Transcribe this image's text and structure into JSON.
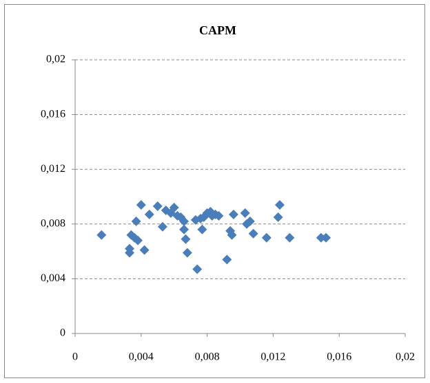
{
  "chart_data": {
    "type": "scatter",
    "title": "CAPM",
    "x": [
      0.0016,
      0.0033,
      0.0033,
      0.0034,
      0.0036,
      0.0038,
      0.0037,
      0.004,
      0.0042,
      0.0045,
      0.005,
      0.0053,
      0.0055,
      0.0058,
      0.006,
      0.0062,
      0.0064,
      0.0066,
      0.0066,
      0.0067,
      0.0068,
      0.0073,
      0.0074,
      0.0076,
      0.0077,
      0.0078,
      0.008,
      0.0082,
      0.0083,
      0.0085,
      0.0087,
      0.0092,
      0.0094,
      0.0095,
      0.0096,
      0.0103,
      0.0104,
      0.0106,
      0.0108,
      0.0116,
      0.0123,
      0.0124,
      0.013,
      0.0149,
      0.0152
    ],
    "values": [
      0.0072,
      0.0059,
      0.0062,
      0.0072,
      0.007,
      0.0068,
      0.0082,
      0.0094,
      0.0061,
      0.0087,
      0.0093,
      0.0078,
      0.009,
      0.0088,
      0.0092,
      0.0086,
      0.0085,
      0.0082,
      0.0076,
      0.0069,
      0.0059,
      0.0083,
      0.0047,
      0.0084,
      0.0076,
      0.0085,
      0.0088,
      0.0089,
      0.0086,
      0.0087,
      0.0086,
      0.0054,
      0.0075,
      0.0072,
      0.0087,
      0.0088,
      0.008,
      0.0082,
      0.0073,
      0.007,
      0.0085,
      0.0094,
      0.007,
      0.007,
      0.007
    ],
    "color": "#4a7ebb",
    "xlim": [
      0,
      0.02
    ],
    "xticks": [
      0,
      {
        "value": 0.004,
        "label": "0,004"
      },
      {
        "value": 0.008,
        "label": "0,008"
      },
      {
        "value": 0.012,
        "label": "0,012"
      },
      {
        "value": 0.016,
        "label": "0,016"
      },
      {
        "value": 0.02,
        "label": "0,02"
      }
    ],
    "ylim": [
      0,
      0.02
    ],
    "yticks": [
      0,
      {
        "value": 0.004,
        "label": "0,004"
      },
      {
        "value": 0.008,
        "label": "0,008"
      },
      {
        "value": 0.012,
        "label": "0,012"
      },
      {
        "value": 0.016,
        "label": "0,016"
      },
      {
        "value": 0.02,
        "label": "0,02"
      }
    ],
    "grid": true
  }
}
